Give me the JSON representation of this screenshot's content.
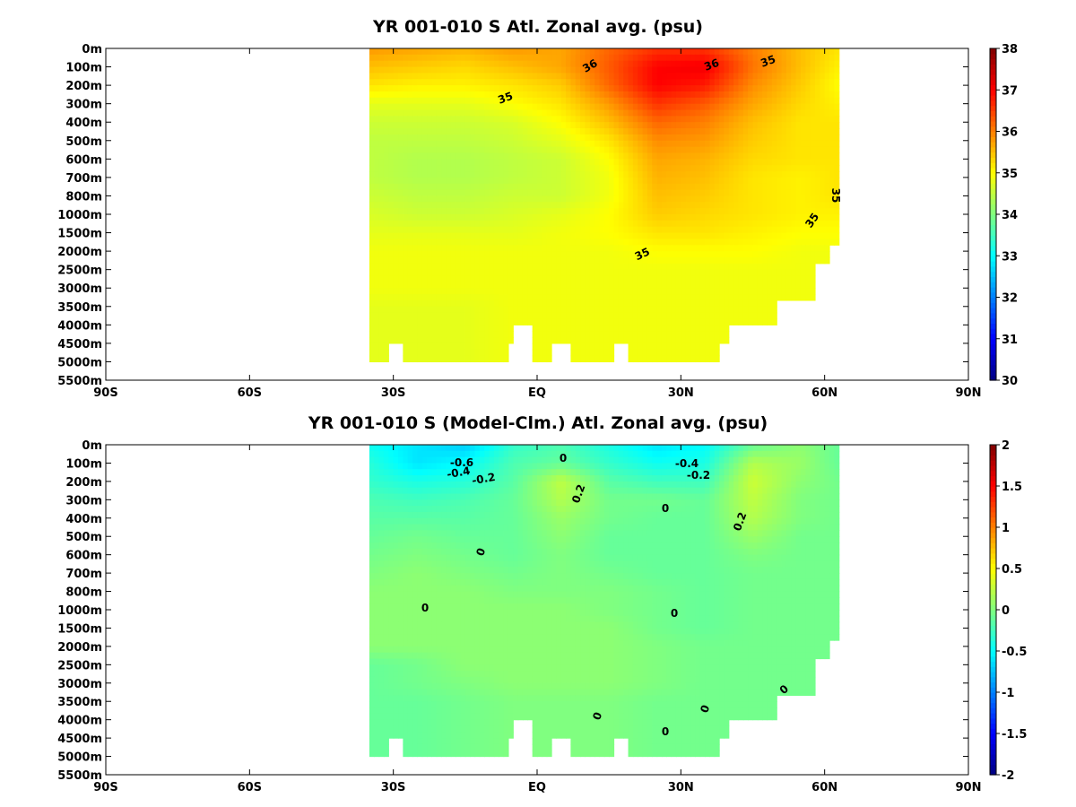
{
  "chart_data": [
    {
      "type": "heatmap",
      "title": "YR 001-010 S Atl. Zonal avg. (psu)",
      "x_tick_labels": [
        "90S",
        "60S",
        "30S",
        "EQ",
        "30N",
        "60N",
        "90N"
      ],
      "x_ticks": [
        -90,
        -60,
        -30,
        0,
        30,
        60,
        90
      ],
      "xlim": [
        -90,
        90
      ],
      "y_tick_labels": [
        "0m",
        "100m",
        "200m",
        "300m",
        "400m",
        "500m",
        "600m",
        "700m",
        "800m",
        "1000m",
        "1500m",
        "2000m",
        "2500m",
        "3000m",
        "3500m",
        "4000m",
        "4500m",
        "5000m",
        "5500m"
      ],
      "y_axis_note": "non-uniform depth axis; labels evenly spaced, depth increasing downward",
      "grid": false,
      "colorbar": {
        "ticks": [
          30,
          31,
          32,
          33,
          34,
          35,
          36,
          37,
          38
        ],
        "range": [
          30,
          38
        ],
        "colormap": "jet"
      },
      "data_extent": {
        "lat": [
          -35,
          63
        ],
        "max_depth_m": 5000
      },
      "depth_levels_m": [
        0,
        100,
        200,
        300,
        400,
        500,
        600,
        700,
        800,
        1000,
        1500,
        2000,
        2500,
        3000,
        3500,
        4000,
        4500,
        5000
      ],
      "grid_lats": [
        -35,
        -25,
        -15,
        -5,
        5,
        15,
        25,
        35,
        45,
        55,
        63
      ],
      "values": [
        [
          35.8,
          35.7,
          35.6,
          35.8,
          35.7,
          36.2,
          36.6,
          36.6,
          36.0,
          35.5,
          35.2
        ],
        [
          35.5,
          35.4,
          35.3,
          35.5,
          35.7,
          36.3,
          37.0,
          37.1,
          36.1,
          35.5,
          35.1
        ],
        [
          35.2,
          35.1,
          35.1,
          35.2,
          35.4,
          36.2,
          37.0,
          36.8,
          35.9,
          35.4,
          35.0
        ],
        [
          34.8,
          34.8,
          34.8,
          35.0,
          35.2,
          35.8,
          36.6,
          36.3,
          35.7,
          35.3,
          35.1
        ],
        [
          34.6,
          34.6,
          34.6,
          34.7,
          35.0,
          35.5,
          36.2,
          36.0,
          35.5,
          35.2,
          35.2
        ],
        [
          34.5,
          34.5,
          34.5,
          34.6,
          34.8,
          35.2,
          35.9,
          35.8,
          35.4,
          35.2,
          35.2
        ],
        [
          34.5,
          34.4,
          34.4,
          34.5,
          34.6,
          35.0,
          35.7,
          35.6,
          35.3,
          35.2,
          35.2
        ],
        [
          34.5,
          34.4,
          34.4,
          34.5,
          34.6,
          34.9,
          35.6,
          35.5,
          35.2,
          35.1,
          35.2
        ],
        [
          34.6,
          34.5,
          34.5,
          34.6,
          34.6,
          34.9,
          35.5,
          35.4,
          35.2,
          35.1,
          35.2
        ],
        [
          34.7,
          34.6,
          34.6,
          34.7,
          34.8,
          35.0,
          35.4,
          35.3,
          35.2,
          35.1,
          35.1
        ],
        [
          34.8,
          34.8,
          34.8,
          34.8,
          34.9,
          35.0,
          35.2,
          35.2,
          35.1,
          35.0,
          35.0
        ],
        [
          34.9,
          34.9,
          34.9,
          34.9,
          34.9,
          34.9,
          35.0,
          35.0,
          35.0,
          34.9,
          34.9
        ],
        [
          34.9,
          34.9,
          34.9,
          34.9,
          34.9,
          34.9,
          34.9,
          34.9,
          34.9,
          34.9,
          34.9
        ],
        [
          34.9,
          34.9,
          34.9,
          34.9,
          34.9,
          34.9,
          34.9,
          34.9,
          34.9,
          34.9,
          34.9
        ],
        [
          34.8,
          34.8,
          34.8,
          34.9,
          34.9,
          34.9,
          34.9,
          34.9,
          34.9,
          34.9,
          34.9
        ],
        [
          34.8,
          34.8,
          34.8,
          34.9,
          34.9,
          34.9,
          34.9,
          34.9,
          34.9,
          34.9,
          34.9
        ],
        [
          34.8,
          34.8,
          34.8,
          34.9,
          34.9,
          34.9,
          34.9,
          34.9,
          34.9,
          34.9,
          34.9
        ],
        [
          34.8,
          34.8,
          34.8,
          34.9,
          34.9,
          34.9,
          34.9,
          34.9,
          34.9,
          34.9,
          34.9
        ]
      ],
      "contour_labels": [
        "36",
        "36",
        "35",
        "35",
        "35",
        "35",
        "35"
      ]
    },
    {
      "type": "heatmap",
      "title": "YR 001-010 S (Model-Clm.) Atl. Zonal avg. (psu)",
      "x_tick_labels": [
        "90S",
        "60S",
        "30S",
        "EQ",
        "30N",
        "60N",
        "90N"
      ],
      "x_ticks": [
        -90,
        -60,
        -30,
        0,
        30,
        60,
        90
      ],
      "xlim": [
        -90,
        90
      ],
      "y_tick_labels": [
        "0m",
        "100m",
        "200m",
        "300m",
        "400m",
        "500m",
        "600m",
        "700m",
        "800m",
        "1000m",
        "1500m",
        "2000m",
        "2500m",
        "3000m",
        "3500m",
        "4000m",
        "4500m",
        "5000m",
        "5500m"
      ],
      "grid": false,
      "colorbar": {
        "ticks": [
          -2,
          -1.5,
          -1,
          -0.5,
          0,
          0.5,
          1,
          1.5,
          2
        ],
        "range": [
          -2,
          2
        ],
        "colormap": "jet"
      },
      "data_extent": {
        "lat": [
          -35,
          63
        ],
        "max_depth_m": 5000
      },
      "depth_levels_m": [
        0,
        100,
        200,
        300,
        400,
        500,
        600,
        700,
        800,
        1000,
        1500,
        2000,
        2500,
        3000,
        3500,
        4000,
        4500,
        5000
      ],
      "grid_lats": [
        -35,
        -25,
        -15,
        -5,
        5,
        15,
        25,
        35,
        45,
        55,
        63
      ],
      "values": [
        [
          -0.45,
          -0.6,
          -0.7,
          -0.3,
          -0.2,
          -0.4,
          -0.6,
          -0.5,
          -0.1,
          0.05,
          -0.1
        ],
        [
          -0.35,
          -0.6,
          -0.5,
          -0.2,
          -0.1,
          -0.3,
          -0.45,
          -0.4,
          0.2,
          0.1,
          -0.1
        ],
        [
          -0.3,
          -0.4,
          -0.35,
          -0.15,
          0.25,
          -0.15,
          -0.25,
          -0.25,
          0.3,
          0.05,
          -0.05
        ],
        [
          -0.2,
          -0.25,
          -0.2,
          -0.1,
          0.2,
          -0.05,
          -0.05,
          -0.1,
          0.25,
          0.0,
          -0.05
        ],
        [
          -0.15,
          -0.15,
          -0.15,
          -0.1,
          0.1,
          -0.05,
          -0.1,
          -0.1,
          0.2,
          0.0,
          -0.05
        ],
        [
          -0.1,
          -0.05,
          -0.1,
          -0.1,
          0.05,
          -0.1,
          -0.1,
          -0.1,
          0.1,
          -0.05,
          -0.05
        ],
        [
          -0.05,
          0.0,
          -0.05,
          -0.1,
          0.0,
          -0.1,
          -0.1,
          -0.1,
          0.0,
          -0.05,
          -0.05
        ],
        [
          0.0,
          0.05,
          0.0,
          -0.05,
          0.0,
          -0.05,
          -0.1,
          -0.1,
          -0.05,
          -0.05,
          -0.05
        ],
        [
          0.05,
          0.05,
          0.05,
          0.0,
          0.0,
          0.0,
          -0.05,
          -0.1,
          -0.05,
          -0.05,
          -0.05
        ],
        [
          0.05,
          0.05,
          0.05,
          0.05,
          0.05,
          0.0,
          -0.05,
          -0.1,
          -0.05,
          -0.05,
          -0.05
        ],
        [
          0.05,
          0.05,
          0.05,
          0.05,
          0.05,
          0.05,
          -0.05,
          -0.1,
          -0.05,
          -0.05,
          -0.05
        ],
        [
          0.05,
          0.05,
          0.05,
          0.05,
          0.05,
          0.05,
          0.0,
          -0.05,
          -0.05,
          -0.05,
          -0.05
        ],
        [
          -0.1,
          -0.05,
          0.05,
          0.05,
          0.05,
          0.05,
          0.0,
          -0.05,
          -0.05,
          -0.05,
          -0.05
        ],
        [
          -0.1,
          -0.05,
          0.0,
          0.05,
          0.05,
          0.05,
          0.0,
          -0.05,
          -0.05,
          -0.05,
          -0.05
        ],
        [
          -0.1,
          -0.1,
          -0.05,
          0.0,
          0.0,
          0.0,
          -0.05,
          -0.05,
          -0.05,
          -0.05,
          -0.05
        ],
        [
          -0.1,
          -0.1,
          -0.05,
          0.0,
          0.0,
          0.0,
          -0.05,
          -0.05,
          -0.05,
          -0.05,
          -0.05
        ],
        [
          -0.1,
          -0.1,
          -0.05,
          0.0,
          0.0,
          0.0,
          -0.05,
          -0.05,
          -0.05,
          -0.05,
          -0.05
        ],
        [
          -0.1,
          -0.1,
          -0.05,
          0.0,
          0.0,
          0.0,
          -0.05,
          -0.05,
          -0.05,
          -0.05,
          -0.05
        ]
      ],
      "contour_labels": [
        "-0.6",
        "-0.4",
        "-0.2",
        "-0.4",
        "-0.2",
        "0.2",
        "0",
        "0.2",
        "0",
        "0",
        "0",
        "0",
        "0",
        "0",
        "0",
        "0"
      ]
    }
  ]
}
